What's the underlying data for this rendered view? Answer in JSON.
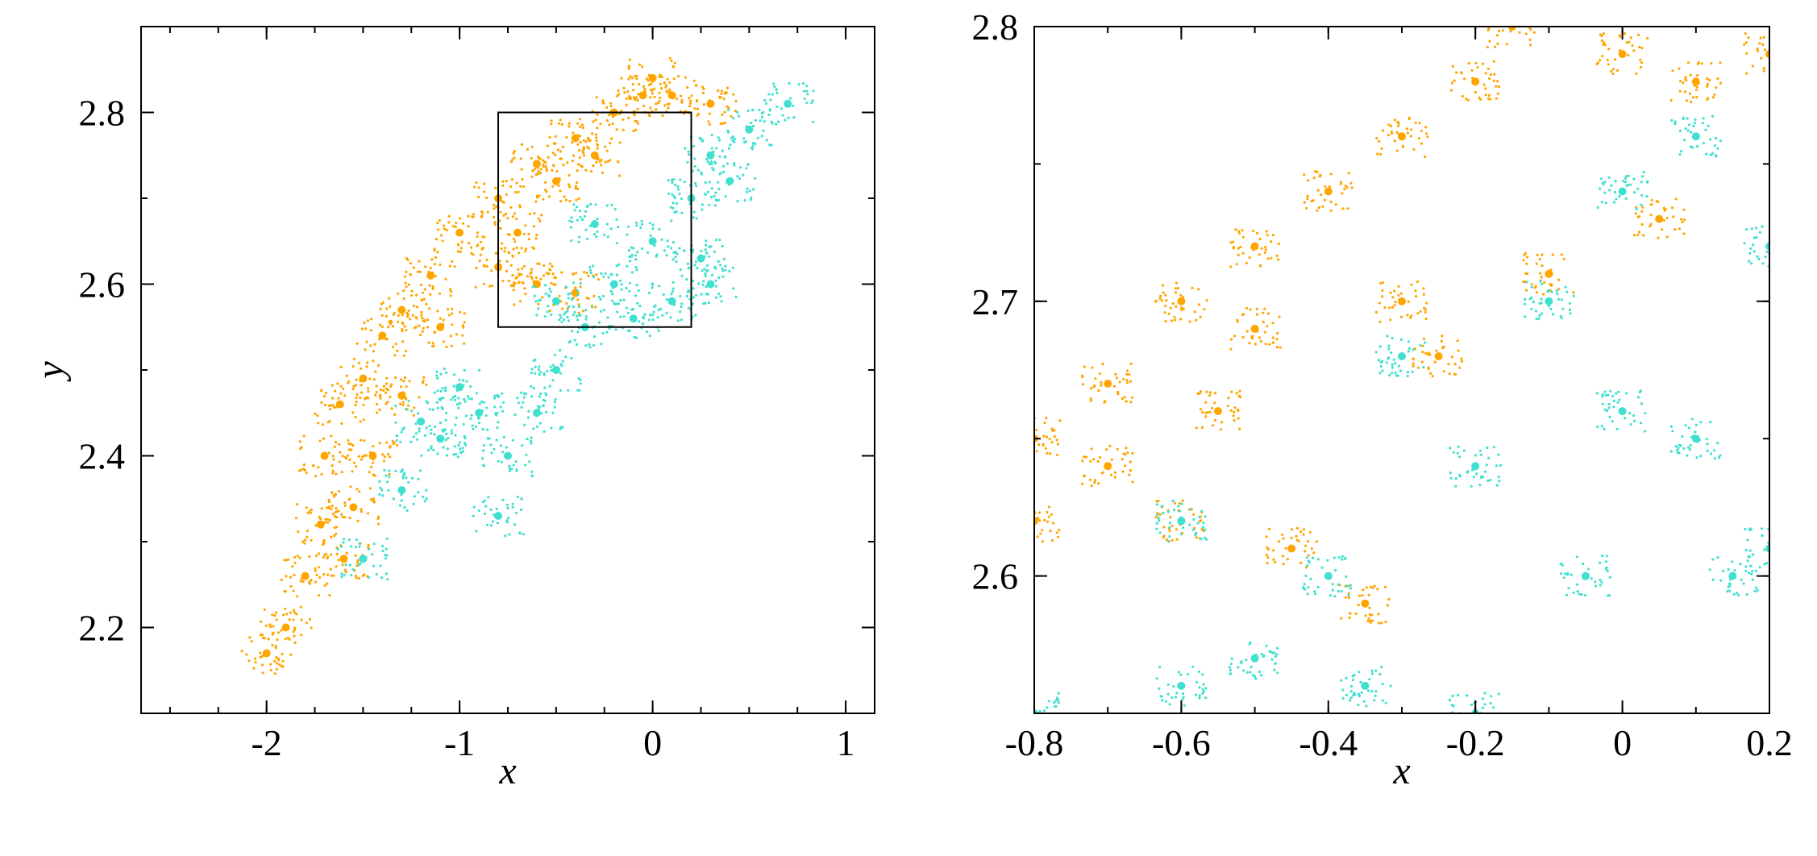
{
  "colors": {
    "orange": "#FFA500",
    "cyan": "#40E0D0",
    "axes": "#000000"
  },
  "chart_data": [
    {
      "type": "scatter",
      "title": "",
      "xlabel": "x",
      "ylabel": "y",
      "xlim": [
        -2.65,
        1.15
      ],
      "ylim": [
        2.1,
        2.9
      ],
      "xticks": [
        -2,
        -1,
        0,
        1
      ],
      "xtick_labels": [
        "-2",
        "-1",
        "0",
        "1"
      ],
      "yticks": [
        2.2,
        2.4,
        2.6,
        2.8
      ],
      "ytick_labels": [
        "2.2",
        "2.4",
        "2.6",
        "2.8"
      ],
      "grid": false,
      "legend": "none",
      "inset_box": {
        "x": [
          -0.8,
          0.2
        ],
        "y": [
          2.55,
          2.8
        ]
      },
      "series": [
        {
          "color": "#FFA500",
          "values_description_points": [
            [
              -2.0,
              2.17
            ],
            [
              -1.9,
              2.2
            ],
            [
              -1.8,
              2.26
            ],
            [
              -1.72,
              2.32
            ],
            [
              -1.7,
              2.4
            ],
            [
              -1.62,
              2.46
            ],
            [
              -1.5,
              2.49
            ],
            [
              -1.4,
              2.54
            ],
            [
              -1.3,
              2.57
            ],
            [
              -1.15,
              2.61
            ],
            [
              -1.0,
              2.66
            ],
            [
              -0.8,
              2.7
            ],
            [
              -0.6,
              2.74
            ],
            [
              -0.4,
              2.77
            ],
            [
              -0.2,
              2.8
            ],
            [
              -0.05,
              2.82
            ],
            [
              0.0,
              2.84
            ],
            [
              0.1,
              2.82
            ],
            [
              0.3,
              2.81
            ],
            [
              -0.3,
              2.75
            ],
            [
              -0.5,
              2.72
            ],
            [
              -0.7,
              2.66
            ],
            [
              -1.1,
              2.55
            ],
            [
              -1.3,
              2.47
            ],
            [
              -1.45,
              2.4
            ],
            [
              -1.55,
              2.34
            ],
            [
              -1.6,
              2.28
            ],
            [
              -0.6,
              2.6
            ],
            [
              -0.4,
              2.59
            ],
            [
              -0.8,
              2.62
            ]
          ]
        },
        {
          "color": "#40E0D0",
          "values_description_points": [
            [
              -1.5,
              2.28
            ],
            [
              -1.3,
              2.36
            ],
            [
              -1.1,
              2.42
            ],
            [
              -0.9,
              2.45
            ],
            [
              -0.8,
              2.33
            ],
            [
              -0.75,
              2.4
            ],
            [
              -0.6,
              2.45
            ],
            [
              -0.5,
              2.5
            ],
            [
              -0.35,
              2.55
            ],
            [
              -0.2,
              2.6
            ],
            [
              0.0,
              2.65
            ],
            [
              0.2,
              2.7
            ],
            [
              0.3,
              2.6
            ],
            [
              0.3,
              2.75
            ],
            [
              0.5,
              2.78
            ],
            [
              0.7,
              2.81
            ],
            [
              0.1,
              2.58
            ],
            [
              -0.1,
              2.56
            ],
            [
              -0.3,
              2.67
            ],
            [
              -0.5,
              2.58
            ],
            [
              -1.0,
              2.48
            ],
            [
              -1.2,
              2.44
            ],
            [
              0.25,
              2.63
            ],
            [
              0.4,
              2.72
            ]
          ]
        }
      ]
    },
    {
      "type": "scatter",
      "title": "",
      "xlabel": "x",
      "ylabel": "",
      "xlim": [
        -0.8,
        0.2
      ],
      "ylim": [
        2.55,
        2.8
      ],
      "xticks": [
        -0.8,
        -0.6,
        -0.4,
        -0.2,
        0,
        0.2
      ],
      "xtick_labels": [
        "-0.8",
        "-0.6",
        "-0.4",
        "-0.2",
        "0",
        "0.2"
      ],
      "yticks": [
        2.6,
        2.7,
        2.8
      ],
      "ytick_labels": [
        "2.6",
        "2.7",
        "2.8"
      ],
      "grid": false,
      "legend": "none",
      "series": [
        {
          "color": "#FFA500",
          "values_description_points": [
            [
              -0.8,
              2.65
            ],
            [
              -0.7,
              2.67
            ],
            [
              -0.6,
              2.7
            ],
            [
              -0.5,
              2.72
            ],
            [
              -0.4,
              2.74
            ],
            [
              -0.3,
              2.76
            ],
            [
              -0.2,
              2.78
            ],
            [
              -0.15,
              2.8
            ],
            [
              0.0,
              2.79
            ],
            [
              0.1,
              2.78
            ],
            [
              0.2,
              2.79
            ],
            [
              -0.8,
              2.62
            ],
            [
              -0.6,
              2.62
            ],
            [
              -0.45,
              2.61
            ],
            [
              -0.35,
              2.59
            ],
            [
              -0.7,
              2.64
            ],
            [
              -0.5,
              2.69
            ],
            [
              -0.3,
              2.7
            ],
            [
              -0.1,
              2.71
            ],
            [
              0.05,
              2.73
            ],
            [
              -0.25,
              2.68
            ],
            [
              -0.55,
              2.66
            ]
          ]
        },
        {
          "color": "#40E0D0",
          "values_description_points": [
            [
              -0.8,
              2.55
            ],
            [
              -0.6,
              2.62
            ],
            [
              -0.4,
              2.6
            ],
            [
              -0.2,
              2.64
            ],
            [
              0.0,
              2.66
            ],
            [
              0.2,
              2.61
            ],
            [
              0.2,
              2.72
            ],
            [
              0.1,
              2.76
            ],
            [
              0.0,
              2.74
            ],
            [
              -0.1,
              2.7
            ],
            [
              -0.3,
              2.68
            ],
            [
              -0.5,
              2.57
            ],
            [
              -0.2,
              2.55
            ],
            [
              0.1,
              2.65
            ],
            [
              -0.35,
              2.56
            ],
            [
              0.15,
              2.6
            ],
            [
              -0.05,
              2.6
            ],
            [
              -0.6,
              2.56
            ]
          ]
        }
      ]
    }
  ]
}
